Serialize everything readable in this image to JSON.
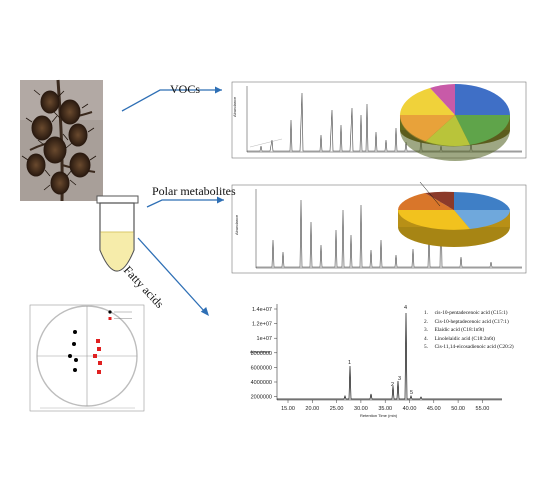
{
  "labels": {
    "vocs": "VOCs",
    "polar": "Polar metabolites",
    "fatty": "Fatty acids"
  },
  "fatty_chart": {
    "ylabel": "Abundance",
    "xlabel": "Retention Time (min)",
    "y_ticks": [
      "1.4e+07",
      "1.2e+07",
      "1e+07",
      "8000000",
      "6000000",
      "4000000",
      "2000000"
    ],
    "x_ticks": [
      "15.00",
      "20.00",
      "25.00",
      "30.00",
      "35.00",
      "40.00",
      "45.00",
      "50.00",
      "55.00"
    ],
    "peak_labels": [
      "1",
      "2",
      "3",
      "4",
      "5"
    ],
    "legend": [
      "1.     cis-10-pentadecenoic acid (C15:1)",
      "2.     Cis-10-heptadecenoic acid (C17:1)",
      "3.     Elaidic acid (C18:1n9t)",
      "4.     Linolelaidic acid (C18:2n6t)",
      "5.     Cis-11,14-eicosadienoic acid (C20:2)"
    ]
  },
  "colors": {
    "arrow": "#2e6fb5",
    "tube_fluid": "#f6ecaa",
    "pca_series_a": "#000000",
    "pca_series_b": "#e02020"
  },
  "icons": [
    "plant-photo-icon",
    "test-tube-icon",
    "pca-plot-icon",
    "pie-chart-icon",
    "chromatogram-icon"
  ]
}
